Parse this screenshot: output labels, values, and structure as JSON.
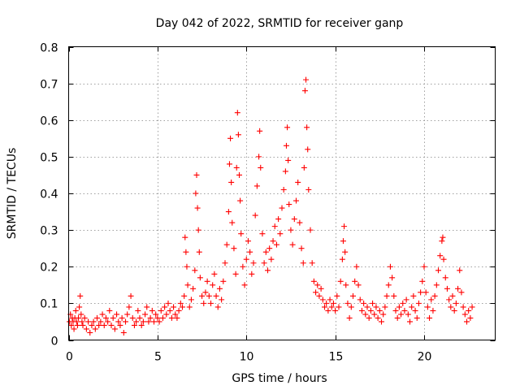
{
  "chart_data": {
    "type": "scatter",
    "title": "Day 042 of 2022, SRMTID for receiver ganp",
    "xlabel": "GPS time / hours",
    "ylabel": "SRMTID / TECUs",
    "xlim": [
      0,
      24
    ],
    "ylim": [
      0,
      0.8
    ],
    "x_ticks": [
      0,
      5,
      10,
      15,
      20
    ],
    "y_ticks": [
      0,
      0.1,
      0.2,
      0.3,
      0.4,
      0.5,
      0.6,
      0.7,
      0.8
    ],
    "grid": true,
    "marker": "+",
    "color": "#ff0000",
    "series": [
      {
        "name": "ganp",
        "points": [
          [
            0.05,
            0.05
          ],
          [
            0.1,
            0.07
          ],
          [
            0.15,
            0.04
          ],
          [
            0.2,
            0.06
          ],
          [
            0.25,
            0.05
          ],
          [
            0.3,
            0.03
          ],
          [
            0.35,
            0.06
          ],
          [
            0.4,
            0.08
          ],
          [
            0.45,
            0.05
          ],
          [
            0.5,
            0.04
          ],
          [
            0.55,
            0.06
          ],
          [
            0.6,
            0.09
          ],
          [
            0.65,
            0.12
          ],
          [
            0.7,
            0.07
          ],
          [
            0.75,
            0.05
          ],
          [
            0.8,
            0.04
          ],
          [
            0.9,
            0.06
          ],
          [
            1.0,
            0.03
          ],
          [
            1.1,
            0.05
          ],
          [
            1.2,
            0.02
          ],
          [
            1.3,
            0.04
          ],
          [
            1.4,
            0.05
          ],
          [
            1.5,
            0.03
          ],
          [
            1.6,
            0.06
          ],
          [
            1.7,
            0.04
          ],
          [
            1.8,
            0.05
          ],
          [
            1.9,
            0.07
          ],
          [
            2.0,
            0.04
          ],
          [
            2.1,
            0.06
          ],
          [
            2.2,
            0.05
          ],
          [
            2.3,
            0.08
          ],
          [
            2.4,
            0.04
          ],
          [
            2.5,
            0.06
          ],
          [
            2.6,
            0.03
          ],
          [
            2.7,
            0.07
          ],
          [
            2.8,
            0.05
          ],
          [
            2.9,
            0.04
          ],
          [
            3.0,
            0.06
          ],
          [
            3.1,
            0.02
          ],
          [
            3.2,
            0.05
          ],
          [
            3.3,
            0.07
          ],
          [
            3.4,
            0.09
          ],
          [
            3.5,
            0.12
          ],
          [
            3.6,
            0.06
          ],
          [
            3.7,
            0.04
          ],
          [
            3.8,
            0.05
          ],
          [
            3.9,
            0.08
          ],
          [
            4.0,
            0.06
          ],
          [
            4.1,
            0.04
          ],
          [
            4.2,
            0.05
          ],
          [
            4.3,
            0.07
          ],
          [
            4.4,
            0.09
          ],
          [
            4.5,
            0.05
          ],
          [
            4.6,
            0.06
          ],
          [
            4.7,
            0.08
          ],
          [
            4.8,
            0.05
          ],
          [
            4.9,
            0.07
          ],
          [
            5.0,
            0.06
          ],
          [
            5.1,
            0.05
          ],
          [
            5.2,
            0.08
          ],
          [
            5.3,
            0.06
          ],
          [
            5.4,
            0.09
          ],
          [
            5.5,
            0.07
          ],
          [
            5.6,
            0.1
          ],
          [
            5.7,
            0.08
          ],
          [
            5.8,
            0.06
          ],
          [
            5.9,
            0.09
          ],
          [
            6.0,
            0.07
          ],
          [
            6.1,
            0.06
          ],
          [
            6.2,
            0.08
          ],
          [
            6.3,
            0.1
          ],
          [
            6.4,
            0.09
          ],
          [
            6.5,
            0.12
          ],
          [
            6.55,
            0.28
          ],
          [
            6.6,
            0.24
          ],
          [
            6.65,
            0.2
          ],
          [
            6.7,
            0.15
          ],
          [
            6.8,
            0.09
          ],
          [
            6.9,
            0.11
          ],
          [
            7.0,
            0.14
          ],
          [
            7.1,
            0.19
          ],
          [
            7.15,
            0.4
          ],
          [
            7.2,
            0.45
          ],
          [
            7.25,
            0.36
          ],
          [
            7.3,
            0.3
          ],
          [
            7.35,
            0.24
          ],
          [
            7.4,
            0.17
          ],
          [
            7.5,
            0.12
          ],
          [
            7.6,
            0.1
          ],
          [
            7.7,
            0.13
          ],
          [
            7.8,
            0.16
          ],
          [
            7.9,
            0.12
          ],
          [
            8.0,
            0.1
          ],
          [
            8.1,
            0.15
          ],
          [
            8.2,
            0.18
          ],
          [
            8.3,
            0.12
          ],
          [
            8.4,
            0.09
          ],
          [
            8.5,
            0.14
          ],
          [
            8.6,
            0.11
          ],
          [
            8.7,
            0.16
          ],
          [
            8.8,
            0.21
          ],
          [
            8.9,
            0.26
          ],
          [
            9.0,
            0.35
          ],
          [
            9.05,
            0.48
          ],
          [
            9.1,
            0.55
          ],
          [
            9.15,
            0.43
          ],
          [
            9.2,
            0.32
          ],
          [
            9.3,
            0.25
          ],
          [
            9.4,
            0.18
          ],
          [
            9.45,
            0.47
          ],
          [
            9.5,
            0.62
          ],
          [
            9.55,
            0.56
          ],
          [
            9.6,
            0.45
          ],
          [
            9.65,
            0.38
          ],
          [
            9.7,
            0.29
          ],
          [
            9.8,
            0.2
          ],
          [
            9.9,
            0.15
          ],
          [
            10.0,
            0.22
          ],
          [
            10.1,
            0.27
          ],
          [
            10.2,
            0.24
          ],
          [
            10.3,
            0.18
          ],
          [
            10.4,
            0.21
          ],
          [
            10.5,
            0.34
          ],
          [
            10.6,
            0.42
          ],
          [
            10.7,
            0.5
          ],
          [
            10.75,
            0.57
          ],
          [
            10.8,
            0.47
          ],
          [
            10.9,
            0.29
          ],
          [
            11.0,
            0.21
          ],
          [
            11.1,
            0.24
          ],
          [
            11.2,
            0.19
          ],
          [
            11.3,
            0.25
          ],
          [
            11.4,
            0.22
          ],
          [
            11.5,
            0.27
          ],
          [
            11.6,
            0.31
          ],
          [
            11.7,
            0.26
          ],
          [
            11.8,
            0.33
          ],
          [
            11.9,
            0.29
          ],
          [
            12.0,
            0.36
          ],
          [
            12.1,
            0.41
          ],
          [
            12.2,
            0.46
          ],
          [
            12.25,
            0.53
          ],
          [
            12.3,
            0.58
          ],
          [
            12.35,
            0.49
          ],
          [
            12.4,
            0.37
          ],
          [
            12.5,
            0.3
          ],
          [
            12.6,
            0.26
          ],
          [
            12.7,
            0.33
          ],
          [
            12.8,
            0.38
          ],
          [
            12.9,
            0.43
          ],
          [
            13.0,
            0.32
          ],
          [
            13.1,
            0.25
          ],
          [
            13.2,
            0.21
          ],
          [
            13.25,
            0.47
          ],
          [
            13.3,
            0.68
          ],
          [
            13.35,
            0.71
          ],
          [
            13.4,
            0.58
          ],
          [
            13.45,
            0.52
          ],
          [
            13.5,
            0.41
          ],
          [
            13.6,
            0.3
          ],
          [
            13.7,
            0.21
          ],
          [
            13.8,
            0.16
          ],
          [
            13.9,
            0.13
          ],
          [
            14.0,
            0.15
          ],
          [
            14.1,
            0.12
          ],
          [
            14.2,
            0.14
          ],
          [
            14.3,
            0.11
          ],
          [
            14.4,
            0.09
          ],
          [
            14.5,
            0.1
          ],
          [
            14.6,
            0.08
          ],
          [
            14.7,
            0.11
          ],
          [
            14.8,
            0.09
          ],
          [
            14.9,
            0.1
          ],
          [
            15.0,
            0.08
          ],
          [
            15.1,
            0.12
          ],
          [
            15.2,
            0.09
          ],
          [
            15.3,
            0.16
          ],
          [
            15.4,
            0.22
          ],
          [
            15.45,
            0.27
          ],
          [
            15.5,
            0.31
          ],
          [
            15.55,
            0.24
          ],
          [
            15.6,
            0.15
          ],
          [
            15.7,
            0.1
          ],
          [
            15.8,
            0.06
          ],
          [
            15.9,
            0.09
          ],
          [
            16.0,
            0.12
          ],
          [
            16.1,
            0.16
          ],
          [
            16.2,
            0.2
          ],
          [
            16.3,
            0.15
          ],
          [
            16.4,
            0.11
          ],
          [
            16.5,
            0.08
          ],
          [
            16.6,
            0.1
          ],
          [
            16.7,
            0.07
          ],
          [
            16.8,
            0.09
          ],
          [
            16.9,
            0.06
          ],
          [
            17.0,
            0.08
          ],
          [
            17.1,
            0.1
          ],
          [
            17.2,
            0.07
          ],
          [
            17.3,
            0.09
          ],
          [
            17.4,
            0.06
          ],
          [
            17.5,
            0.08
          ],
          [
            17.6,
            0.05
          ],
          [
            17.7,
            0.07
          ],
          [
            17.8,
            0.09
          ],
          [
            17.9,
            0.12
          ],
          [
            18.0,
            0.15
          ],
          [
            18.1,
            0.2
          ],
          [
            18.2,
            0.17
          ],
          [
            18.3,
            0.12
          ],
          [
            18.4,
            0.08
          ],
          [
            18.5,
            0.06
          ],
          [
            18.6,
            0.09
          ],
          [
            18.7,
            0.07
          ],
          [
            18.8,
            0.1
          ],
          [
            18.9,
            0.08
          ],
          [
            19.0,
            0.11
          ],
          [
            19.1,
            0.07
          ],
          [
            19.2,
            0.05
          ],
          [
            19.3,
            0.09
          ],
          [
            19.4,
            0.12
          ],
          [
            19.5,
            0.08
          ],
          [
            19.6,
            0.06
          ],
          [
            19.7,
            0.1
          ],
          [
            19.8,
            0.13
          ],
          [
            19.9,
            0.16
          ],
          [
            20.0,
            0.2
          ],
          [
            20.1,
            0.13
          ],
          [
            20.2,
            0.09
          ],
          [
            20.3,
            0.06
          ],
          [
            20.4,
            0.11
          ],
          [
            20.5,
            0.08
          ],
          [
            20.6,
            0.12
          ],
          [
            20.7,
            0.15
          ],
          [
            20.8,
            0.19
          ],
          [
            20.9,
            0.23
          ],
          [
            21.0,
            0.27
          ],
          [
            21.05,
            0.28
          ],
          [
            21.1,
            0.22
          ],
          [
            21.2,
            0.17
          ],
          [
            21.3,
            0.14
          ],
          [
            21.4,
            0.11
          ],
          [
            21.5,
            0.09
          ],
          [
            21.6,
            0.12
          ],
          [
            21.7,
            0.08
          ],
          [
            21.8,
            0.1
          ],
          [
            21.9,
            0.14
          ],
          [
            22.0,
            0.19
          ],
          [
            22.1,
            0.13
          ],
          [
            22.2,
            0.09
          ],
          [
            22.3,
            0.07
          ],
          [
            22.4,
            0.05
          ],
          [
            22.5,
            0.08
          ],
          [
            22.6,
            0.06
          ],
          [
            22.7,
            0.09
          ]
        ]
      }
    ]
  }
}
